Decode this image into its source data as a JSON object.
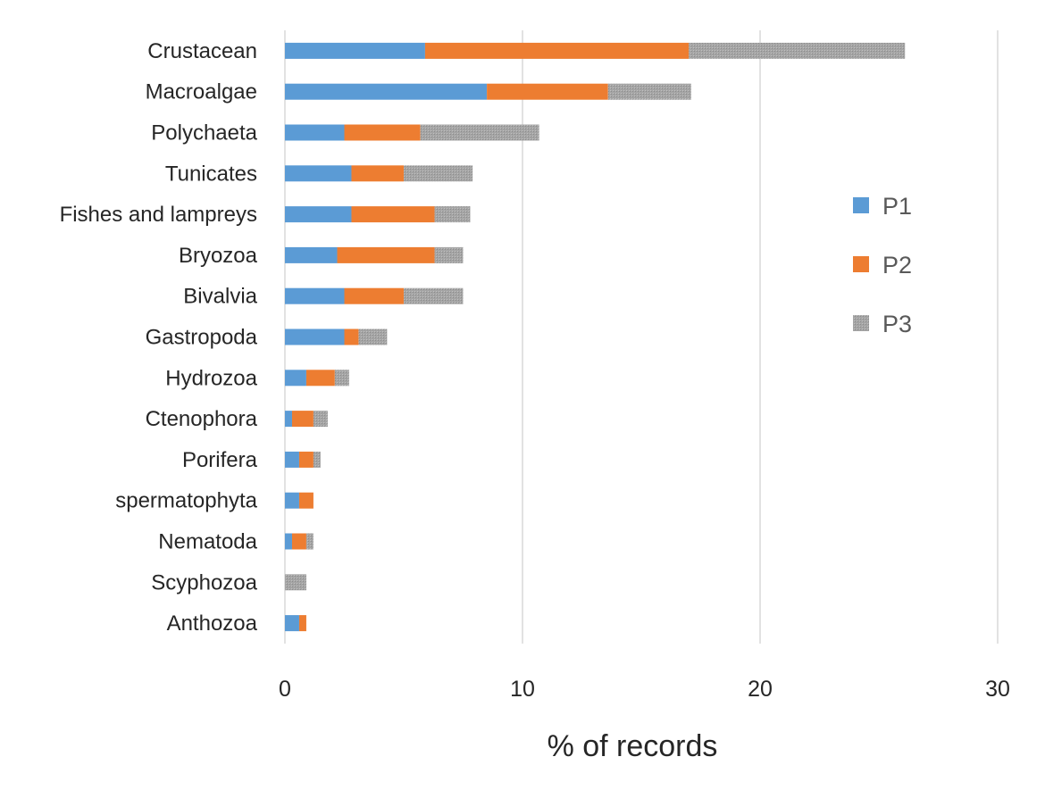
{
  "chart_data": {
    "type": "bar",
    "orientation": "horizontal",
    "stacked": true,
    "title": "",
    "xlabel": "% of records",
    "ylabel": "",
    "xlim": [
      0,
      30
    ],
    "xticks": [
      0,
      10,
      20,
      30
    ],
    "grid": true,
    "legend_position": "right",
    "categories": [
      "Crustacean",
      "Macroalgae",
      "Polychaeta",
      "Tunicates",
      "Fishes and lampreys",
      "Bryozoa",
      "Bivalvia",
      "Gastropoda",
      "Hydrozoa",
      "Ctenophora",
      "Porifera",
      "spermatophyta",
      "Nematoda",
      "Scyphozoa",
      "Anthozoa"
    ],
    "series": [
      {
        "name": "P1",
        "color": "#5b9bd5",
        "values": [
          5.9,
          8.5,
          2.5,
          2.8,
          2.8,
          2.2,
          2.5,
          2.5,
          0.9,
          0.3,
          0.6,
          0.6,
          0.3,
          0,
          0.6
        ]
      },
      {
        "name": "P2",
        "color": "#ed7d31",
        "values": [
          11.1,
          5.1,
          3.2,
          2.2,
          3.5,
          4.1,
          2.5,
          0.6,
          1.2,
          0.9,
          0.6,
          0.6,
          0.6,
          0,
          0.3
        ]
      },
      {
        "name": "P3",
        "color": "#a5a5a5",
        "values": [
          9.1,
          3.5,
          5.0,
          2.9,
          1.5,
          1.2,
          2.5,
          1.2,
          0.6,
          0.6,
          0.3,
          0,
          0.3,
          0.9,
          0
        ]
      }
    ]
  }
}
